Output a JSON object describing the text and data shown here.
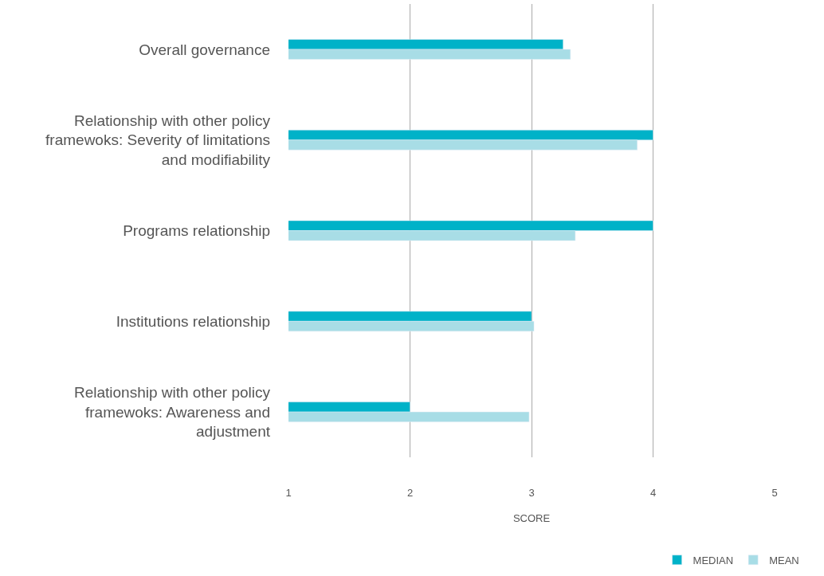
{
  "chart_data": {
    "type": "bar",
    "orientation": "horizontal",
    "xlabel": "SCORE",
    "categories": [
      "Overall governance",
      "Relationship with other policy framewoks: Severity of limitations and modifiability",
      "Programs relationship",
      "Institutions relationship",
      "Relationship with other policy framewoks: Awareness and adjustment"
    ],
    "series": [
      {
        "name": "MEDIAN",
        "color": "#00b2c8",
        "values": [
          3.26,
          4,
          4,
          3,
          2
        ]
      },
      {
        "name": "MEAN",
        "color": "#a8dde6",
        "values": [
          3.32,
          3.87,
          3.36,
          3.02,
          2.98
        ]
      }
    ],
    "xlim": [
      1,
      5
    ],
    "xticks": [
      1,
      2,
      3,
      4,
      5
    ],
    "grid": "x",
    "legend": "bottom right"
  }
}
